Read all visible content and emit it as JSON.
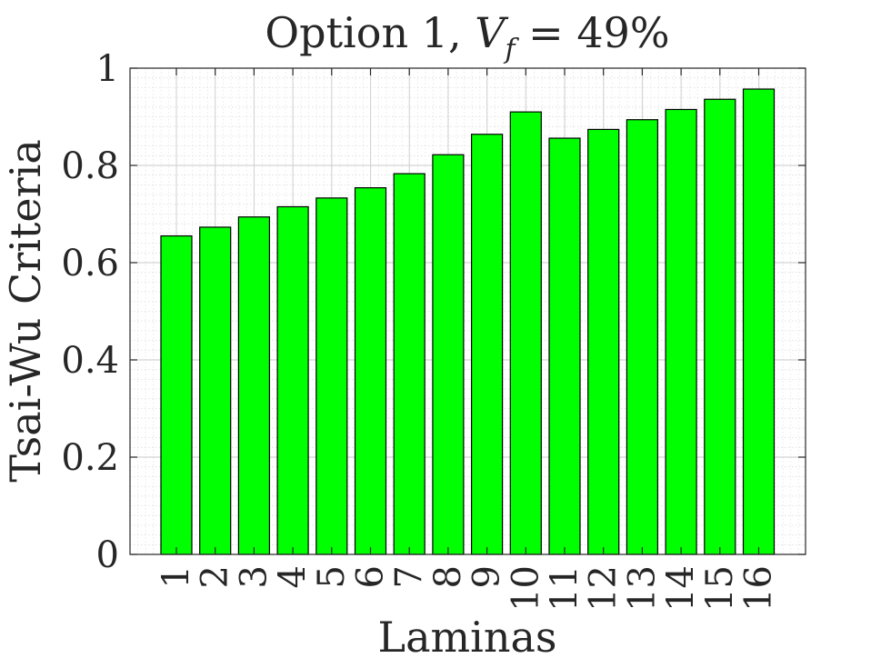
{
  "chart_data": {
    "type": "bar",
    "title": {
      "prefix": "Option 1, ",
      "var_main": "V",
      "var_sub": "f",
      "suffix": " = 49%"
    },
    "xlabel": "Laminas",
    "ylabel": "Tsai-Wu Criteria",
    "categories": [
      "1",
      "2",
      "3",
      "4",
      "5",
      "6",
      "7",
      "8",
      "9",
      "10",
      "11",
      "12",
      "13",
      "14",
      "15",
      "16"
    ],
    "values": [
      0.655,
      0.673,
      0.694,
      0.715,
      0.733,
      0.754,
      0.783,
      0.822,
      0.864,
      0.91,
      0.856,
      0.874,
      0.894,
      0.915,
      0.936,
      0.957
    ],
    "ylim": [
      0,
      1
    ],
    "yticks": [
      0,
      0.2,
      0.4,
      0.6,
      0.8,
      1
    ],
    "ytick_labels": [
      "0",
      "0.2",
      "0.4",
      "0.6",
      "0.8",
      "1"
    ],
    "grid": true,
    "minor_grid": true,
    "bar_color": "#00ff00",
    "bar_edge_color": "#000000"
  }
}
